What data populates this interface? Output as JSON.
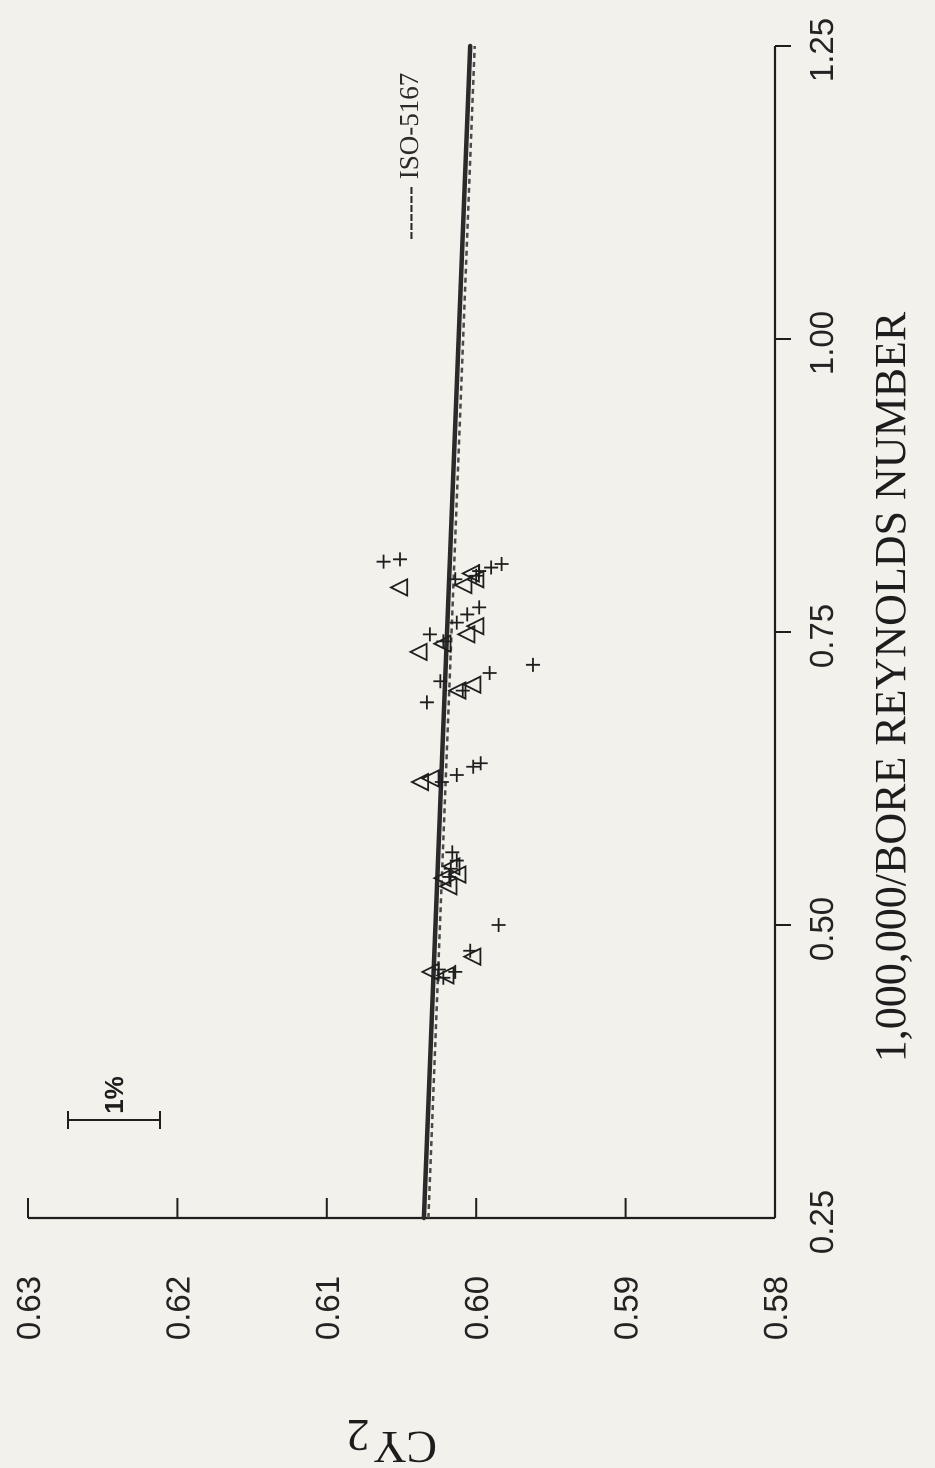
{
  "chart_data": {
    "type": "scatter",
    "orientation": "rotated 90° counter-clockwise",
    "xlabel": "1,000,000/BORE REYNOLDS NUMBER",
    "ylabel": "CY",
    "ylabel_subscript": "2",
    "xlim": [
      0.25,
      1.25
    ],
    "ylim": [
      0.58,
      0.63
    ],
    "x_ticks": [
      "0.25",
      "0.50",
      "0.75",
      "1.00",
      "1.25"
    ],
    "y_ticks": [
      "0.58",
      "0.59",
      "0.60",
      "0.61",
      "0.62",
      "0.63"
    ],
    "grid": false,
    "legend": {
      "placement": "top-right",
      "dashed_label": "ISO-5167",
      "dashed_prefix": "------"
    },
    "scale_bar": {
      "label": "1%",
      "value": 0.01
    },
    "series": [
      {
        "marker": "plus",
        "points": [
          [
            0.455,
            0.6022
          ],
          [
            0.46,
            0.6014
          ],
          [
            0.462,
            0.6025
          ],
          [
            0.478,
            0.6004
          ],
          [
            0.5,
            0.5985
          ],
          [
            0.541,
            0.6018
          ],
          [
            0.548,
            0.6017
          ],
          [
            0.555,
            0.6013
          ],
          [
            0.562,
            0.6016
          ],
          [
            0.622,
            0.6023
          ],
          [
            0.628,
            0.6013
          ],
          [
            0.635,
            0.6002
          ],
          [
            0.638,
            0.5997
          ],
          [
            0.69,
            0.6033
          ],
          [
            0.7,
            0.6009
          ],
          [
            0.708,
            0.6024
          ],
          [
            0.715,
            0.5991
          ],
          [
            0.722,
            0.5962
          ],
          [
            0.742,
            0.6022
          ],
          [
            0.748,
            0.6031
          ],
          [
            0.758,
            0.6013
          ],
          [
            0.765,
            0.6006
          ],
          [
            0.771,
            0.5998
          ],
          [
            0.795,
            0.6014
          ],
          [
            0.798,
            0.6
          ],
          [
            0.802,
            0.5998
          ],
          [
            0.805,
            0.599
          ],
          [
            0.808,
            0.5983
          ],
          [
            0.81,
            0.6062
          ],
          [
            0.812,
            0.6051
          ]
        ]
      },
      {
        "marker": "triangle",
        "points": [
          [
            0.457,
            0.602
          ],
          [
            0.46,
            0.603
          ],
          [
            0.473,
            0.6002
          ],
          [
            0.533,
            0.6018
          ],
          [
            0.54,
            0.6022
          ],
          [
            0.543,
            0.6012
          ],
          [
            0.55,
            0.6016
          ],
          [
            0.622,
            0.6037
          ],
          [
            0.625,
            0.603
          ],
          [
            0.7,
            0.6012
          ],
          [
            0.705,
            0.6002
          ],
          [
            0.733,
            0.6038
          ],
          [
            0.74,
            0.6022
          ],
          [
            0.748,
            0.6006
          ],
          [
            0.755,
            0.6
          ],
          [
            0.788,
            0.6051
          ],
          [
            0.79,
            0.6008
          ],
          [
            0.795,
            0.6
          ],
          [
            0.8,
            0.6003
          ]
        ]
      }
    ],
    "fit_lines": [
      {
        "style": "solid",
        "x": [
          0.25,
          1.25
        ],
        "y": [
          0.6035,
          0.6004
        ]
      },
      {
        "style": "dashed",
        "label": "ISO-5167",
        "x": [
          0.25,
          1.25
        ],
        "y": [
          0.6032,
          0.6001
        ]
      }
    ]
  }
}
